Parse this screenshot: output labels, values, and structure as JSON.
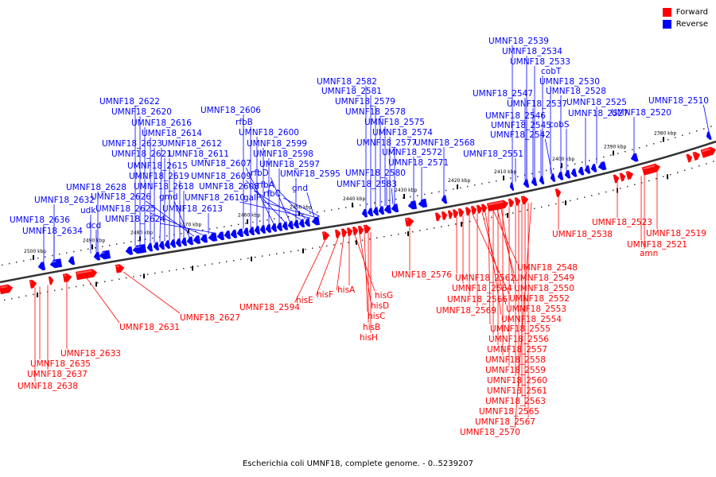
{
  "legend": {
    "forward": {
      "label": "Forward",
      "color": "#ff0000"
    },
    "reverse": {
      "label": "Reverse",
      "color": "#0000ff"
    }
  },
  "caption": "Escherichia coli UMNF18, complete genome. - 0..5239207",
  "ticks": [
    "2500 kbp",
    "2490 kbp",
    "2480 kbp",
    "2470 kbp",
    "2460 kbp",
    "2450 kbp",
    "2440 kbp",
    "2430 kbp",
    "2420 kbp",
    "2410 kbp",
    "2400 kbp",
    "2390 kbp",
    "2380 kbp"
  ],
  "reverse_labels": [
    "UMNF18_2622",
    "UMNF18_2620",
    "UMNF18_2616",
    "UMNF18_2614",
    "UMNF18_2623",
    "UMNF18_2612",
    "UMNF18_2621",
    "UMNF18_2611",
    "UMNF18_2615",
    "UMNF18_2619",
    "UMNF18_2618",
    "UMNF18_2628",
    "gmd",
    "UMNF18_2632",
    "UMNF18_2626",
    "udk",
    "UMNF18_2625",
    "UMNF18_2613",
    "UMNF18_2636",
    "dcd",
    "UMNF18_2624",
    "UMNF18_2634",
    "UMNF18_2606",
    "rfbB",
    "UMNF18_2600",
    "UMNF18_2599",
    "UMNF18_2598",
    "UMNF18_2607",
    "UMNF18_2597",
    "UMNF18_2609",
    "rfbD",
    "UMNF18_2595",
    "UMNF18_2608",
    "rfbA",
    "UMNF18_2610",
    "galF",
    "rfbC",
    "gnd",
    "UMNF18_2582",
    "UMNF18_2581",
    "UMNF18_2579",
    "UMNF18_2578",
    "UMNF18_2575",
    "UMNF18_2574",
    "UMNF18_2577",
    "UMNF18_2568",
    "UMNF18_2572",
    "UMNF18_2571",
    "UMNF18_2580",
    "UMNF18_2583",
    "UMNF18_2539",
    "UMNF18_2534",
    "UMNF18_2533",
    "cobT",
    "UMNF18_2530",
    "UMNF18_2547",
    "UMNF18_2528",
    "UMNF18_2537",
    "UMNF18_2525",
    "UMNF18_2546",
    "UMNF18_2527",
    "UMNF18_2520",
    "UMNF18_2545",
    "cobS",
    "UMNF18_2542",
    "UMNF18_2551",
    "UMNF18_2510"
  ],
  "forward_labels": [
    "UMNF18_2594",
    "hisE",
    "hisF",
    "hisA",
    "hisG",
    "hisD",
    "hisC",
    "hisB",
    "hisH",
    "UMNF18_2576",
    "UMNF18_2548",
    "UMNF18_2562",
    "UMNF18_2549",
    "UMNF18_2564",
    "UMNF18_2550",
    "UMNF18_2566",
    "UMNF18_2552",
    "UMNF18_2569",
    "UMNF18_2553",
    "UMNF18_2554",
    "UMNF18_2555",
    "UMNF18_2556",
    "UMNF18_2557",
    "UMNF18_2558",
    "UMNF18_2559",
    "UMNF18_2560",
    "UMNF18_2561",
    "UMNF18_2563",
    "UMNF18_2565",
    "UMNF18_2567",
    "UMNF18_2570",
    "UMNF18_2538",
    "UMNF18_2523",
    "UMNF18_2519",
    "UMNF18_2521",
    "amn",
    "UMNF18_2631",
    "UMNF18_2627",
    "UMNF18_2633",
    "UMNF18_2635",
    "UMNF18_2637",
    "UMNF18_2638"
  ]
}
